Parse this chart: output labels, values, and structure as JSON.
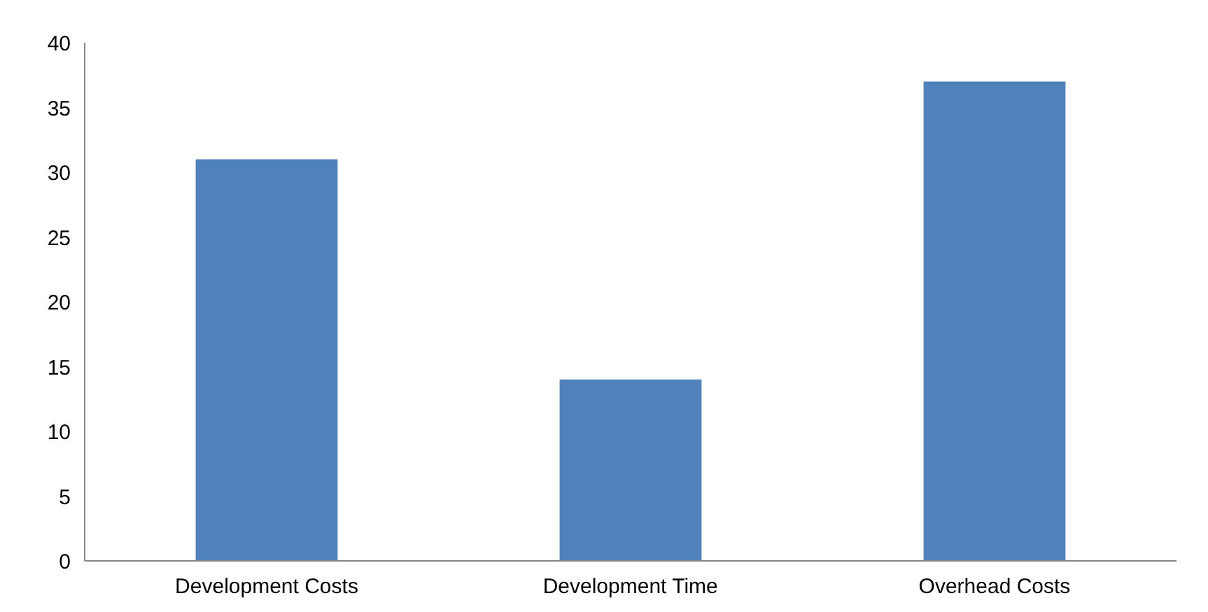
{
  "chart_data": {
    "type": "bar",
    "categories": [
      "Development Costs",
      "Development Time",
      "Overhead Costs"
    ],
    "values": [
      31,
      14,
      37
    ],
    "color": "#4f81bd",
    "ylim": [
      0,
      40
    ],
    "yticks": [
      0,
      5,
      10,
      15,
      20,
      25,
      30,
      35,
      40
    ],
    "grid": false
  }
}
